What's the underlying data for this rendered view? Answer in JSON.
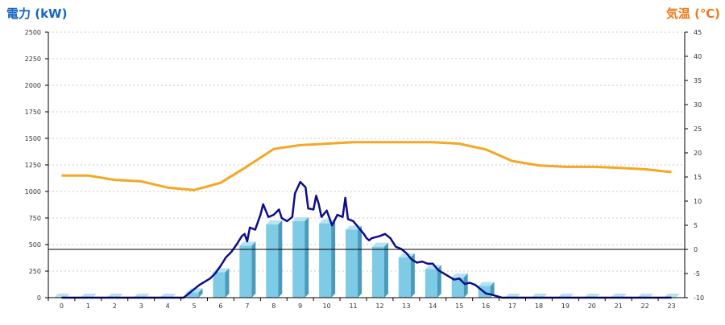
{
  "chart_data": {
    "type": "bar+line",
    "y_left": {
      "label": "電力 (kW)",
      "ticks": [
        0,
        250,
        500,
        750,
        1000,
        1250,
        1500,
        1750,
        2000,
        2250,
        2500
      ],
      "range": [
        0,
        2500
      ]
    },
    "y_right": {
      "label": "気温 (℃)",
      "ticks": [
        -10,
        -5,
        0,
        5,
        10,
        15,
        20,
        25,
        30,
        35,
        40,
        45
      ],
      "range": [
        -10,
        45
      ]
    },
    "x": {
      "categories": [
        "0",
        "1",
        "2",
        "3",
        "4",
        "5",
        "6",
        "7",
        "8",
        "9",
        "10",
        "11",
        "12",
        "13",
        "14",
        "15",
        "16",
        "17",
        "18",
        "19",
        "20",
        "21",
        "22",
        "23"
      ]
    },
    "grid": true,
    "series": [
      {
        "kind": "bar",
        "axis": "left",
        "color": "#7ecbe6",
        "values": [
          0,
          0,
          0,
          0,
          0,
          50,
          240,
          490,
          690,
          720,
          700,
          640,
          480,
          380,
          270,
          190,
          110,
          0,
          0,
          0,
          0,
          0,
          0,
          0
        ]
      },
      {
        "kind": "line",
        "axis": "left",
        "color": "#0d0d8c",
        "points": [
          [
            0,
            0
          ],
          [
            1,
            0
          ],
          [
            2,
            0
          ],
          [
            3,
            0
          ],
          [
            4,
            0
          ],
          [
            4.6,
            0
          ],
          [
            4.8,
            40
          ],
          [
            5,
            80
          ],
          [
            5.2,
            120
          ],
          [
            5.4,
            150
          ],
          [
            5.6,
            180
          ],
          [
            5.8,
            230
          ],
          [
            6,
            300
          ],
          [
            6.2,
            380
          ],
          [
            6.4,
            430
          ],
          [
            6.6,
            500
          ],
          [
            6.8,
            580
          ],
          [
            6.9,
            600
          ],
          [
            7,
            530
          ],
          [
            7.1,
            660
          ],
          [
            7.3,
            640
          ],
          [
            7.5,
            780
          ],
          [
            7.6,
            880
          ],
          [
            7.8,
            760
          ],
          [
            8,
            780
          ],
          [
            8.2,
            830
          ],
          [
            8.3,
            750
          ],
          [
            8.5,
            720
          ],
          [
            8.7,
            760
          ],
          [
            8.8,
            980
          ],
          [
            9,
            1090
          ],
          [
            9.2,
            1040
          ],
          [
            9.3,
            840
          ],
          [
            9.5,
            830
          ],
          [
            9.6,
            960
          ],
          [
            9.7,
            880
          ],
          [
            9.8,
            760
          ],
          [
            10,
            820
          ],
          [
            10.2,
            680
          ],
          [
            10.4,
            780
          ],
          [
            10.6,
            760
          ],
          [
            10.7,
            940
          ],
          [
            10.8,
            740
          ],
          [
            11,
            720
          ],
          [
            11.2,
            660
          ],
          [
            11.4,
            600
          ],
          [
            11.5,
            560
          ],
          [
            11.6,
            540
          ],
          [
            11.7,
            560
          ],
          [
            12,
            580
          ],
          [
            12.2,
            600
          ],
          [
            12.4,
            560
          ],
          [
            12.6,
            480
          ],
          [
            12.8,
            460
          ],
          [
            13,
            420
          ],
          [
            13.2,
            360
          ],
          [
            13.4,
            330
          ],
          [
            13.6,
            340
          ],
          [
            13.8,
            320
          ],
          [
            14,
            320
          ],
          [
            14.2,
            260
          ],
          [
            14.4,
            230
          ],
          [
            14.6,
            200
          ],
          [
            14.8,
            170
          ],
          [
            15,
            180
          ],
          [
            15.2,
            130
          ],
          [
            15.4,
            140
          ],
          [
            15.6,
            120
          ],
          [
            15.8,
            80
          ],
          [
            16,
            40
          ],
          [
            16.2,
            30
          ],
          [
            16.6,
            0
          ],
          [
            17,
            0
          ],
          [
            18,
            0
          ],
          [
            19,
            0
          ],
          [
            20,
            0
          ],
          [
            21,
            0
          ],
          [
            22,
            0
          ],
          [
            23,
            0
          ]
        ]
      },
      {
        "kind": "line",
        "axis": "right",
        "color": "#f5a623",
        "values": [
          15.3,
          15.3,
          14.4,
          14.1,
          12.8,
          12.3,
          13.8,
          17.2,
          20.8,
          21.6,
          21.9,
          22.2,
          22.2,
          22.2,
          22.2,
          21.9,
          20.7,
          18.3,
          17.4,
          17.1,
          17.1,
          16.9,
          16.6,
          16.0
        ]
      }
    ],
    "zero_line_right": 0
  },
  "colors": {
    "bar_front": "#7ecbe6",
    "bar_side": "#4a9bbb",
    "bar_top": "#b6e3f3",
    "power_line": "#0d0d8c",
    "temp_line": "#f5a623",
    "grid": "#c8c8c8",
    "axis": "#000000"
  }
}
